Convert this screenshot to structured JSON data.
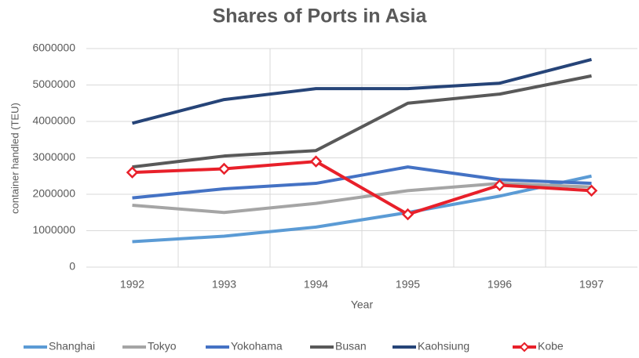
{
  "chart_data": {
    "type": "line",
    "title": "Shares of Ports in Asia",
    "x_label": "Year",
    "y_label": "container handled (TEU)",
    "categories": [
      "1992",
      "1993",
      "1994",
      "1995",
      "1996",
      "1997"
    ],
    "ylim": [
      0,
      6000000
    ],
    "yticks": [
      0,
      1000000,
      2000000,
      3000000,
      4000000,
      5000000,
      6000000
    ],
    "grid": true,
    "legend": "bottom",
    "series": [
      {
        "name": "Shanghai",
        "color": "#5b9bd5",
        "values": [
          700000,
          850000,
          1100000,
          1500000,
          1950000,
          2500000
        ]
      },
      {
        "name": "Tokyo",
        "color": "#a5a5a5",
        "values": [
          1700000,
          1500000,
          1750000,
          2100000,
          2300000,
          2200000
        ]
      },
      {
        "name": "Yokohama",
        "color": "#4472c4",
        "values": [
          1900000,
          2150000,
          2300000,
          2750000,
          2400000,
          2300000
        ]
      },
      {
        "name": "Busan",
        "color": "#595959",
        "values": [
          2750000,
          3050000,
          3200000,
          4500000,
          4750000,
          5250000
        ]
      },
      {
        "name": "Kaohsiung",
        "color": "#264478",
        "values": [
          3950000,
          4600000,
          4900000,
          4900000,
          5050000,
          5700000
        ]
      },
      {
        "name": "Kobe",
        "color": "#e8202a",
        "marker": "diamond",
        "values": [
          2600000,
          2700000,
          2900000,
          1450000,
          2250000,
          2100000
        ]
      }
    ]
  }
}
